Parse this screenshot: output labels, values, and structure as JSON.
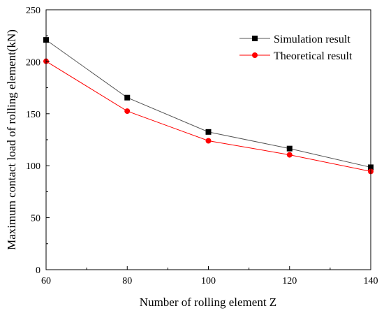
{
  "chart_data": {
    "type": "line",
    "title": "",
    "xlabel": "Number of rolling element Z",
    "ylabel": "Maximum contact load of rolling element(kN)",
    "x": [
      60,
      80,
      100,
      120,
      140
    ],
    "xlim": [
      60,
      140
    ],
    "ylim": [
      0,
      250
    ],
    "xticks": [
      60,
      80,
      100,
      120,
      140
    ],
    "yticks": [
      0,
      50,
      100,
      150,
      200,
      250
    ],
    "grid": false,
    "legend_position": "top-right",
    "series": [
      {
        "name": "Simulation result",
        "values": [
          221,
          165.5,
          132.5,
          116.5,
          98.5
        ],
        "color": "#000000",
        "line_color": "#555555",
        "marker": "square"
      },
      {
        "name": "Theoretical result",
        "values": [
          200.5,
          152.5,
          124,
          110.5,
          94.5
        ],
        "color": "#ff0000",
        "line_color": "#ff0000",
        "marker": "circle"
      }
    ]
  }
}
